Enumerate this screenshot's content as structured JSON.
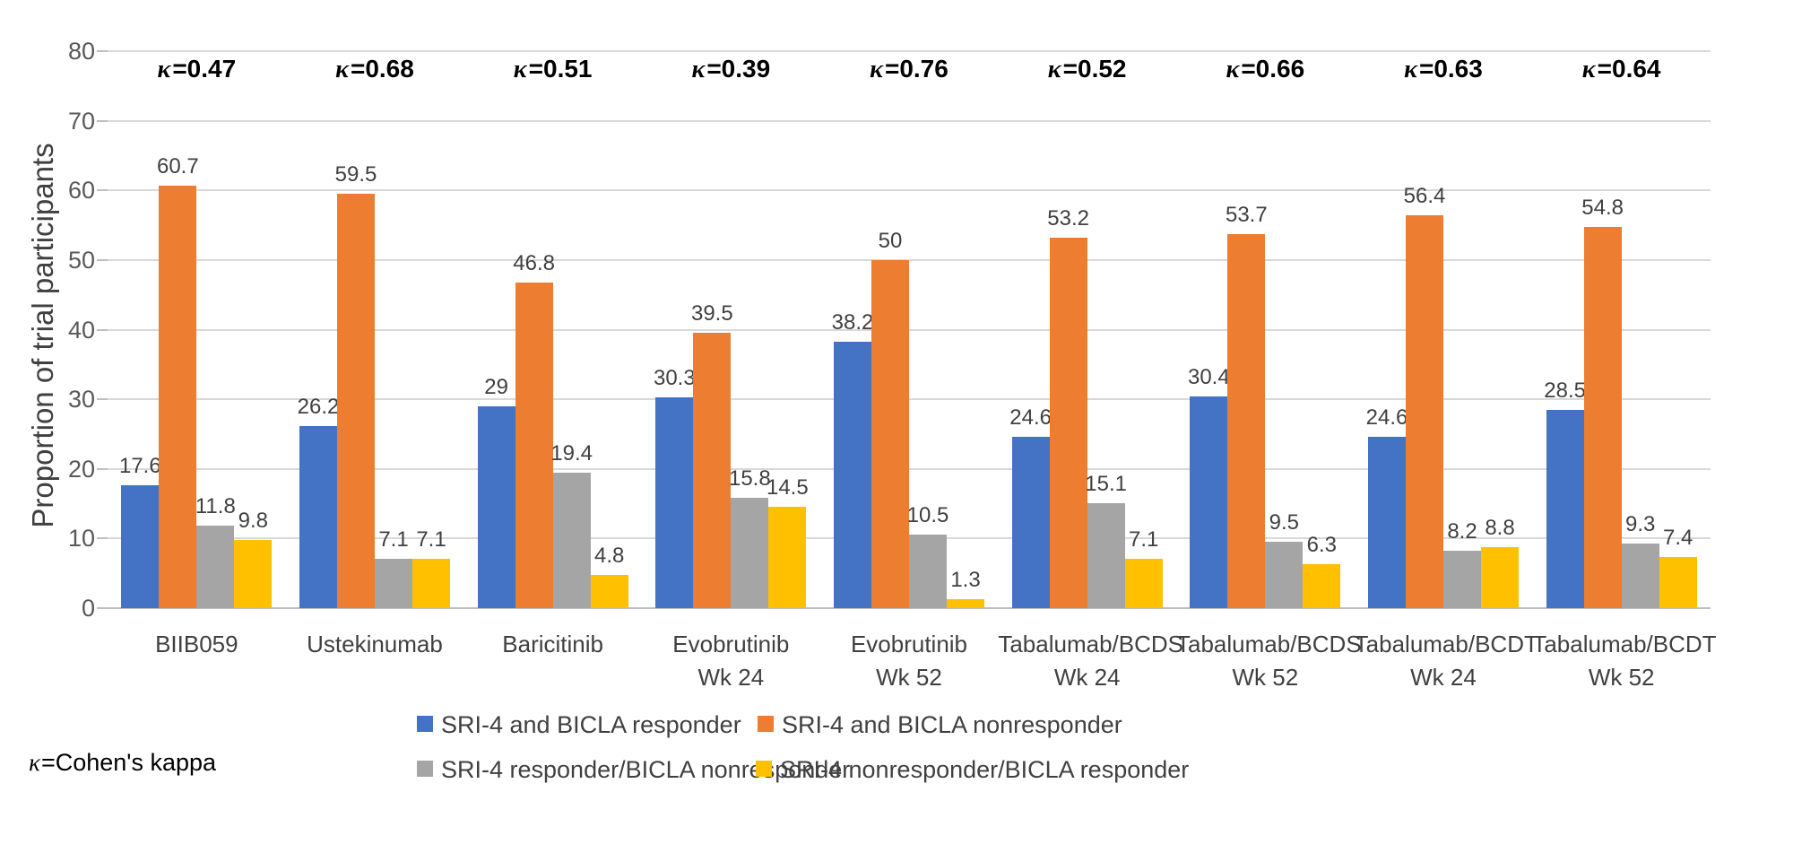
{
  "chart_data": {
    "type": "bar",
    "title": "",
    "xlabel": "",
    "ylabel": "Proportion of trial participants",
    "ylim": [
      0,
      80
    ],
    "y_ticks": [
      0,
      10,
      20,
      30,
      40,
      50,
      60,
      70,
      80
    ],
    "grid": true,
    "legend_position": "bottom",
    "categories": [
      {
        "lines": [
          "BIIB059"
        ]
      },
      {
        "lines": [
          "Ustekinumab"
        ]
      },
      {
        "lines": [
          "Baricitinib"
        ]
      },
      {
        "lines": [
          "Evobrutinib",
          "Wk 24"
        ]
      },
      {
        "lines": [
          "Evobrutinib",
          "Wk 52"
        ]
      },
      {
        "lines": [
          "Tabalumab/BCDS",
          "Wk 24"
        ]
      },
      {
        "lines": [
          "Tabalumab/BCDS",
          "Wk 52"
        ]
      },
      {
        "lines": [
          "Tabalumab/BCDT",
          "Wk 24"
        ]
      },
      {
        "lines": [
          "Tabalumab/BCDT",
          "Wk 52"
        ]
      }
    ],
    "series": [
      {
        "name": "SRI-4 and BICLA responder",
        "color": "#4472C4",
        "values": [
          "17.6",
          "26.2",
          "29",
          "30.3",
          "38.2",
          "24.6",
          "30.4",
          "24.6",
          "28.5"
        ]
      },
      {
        "name": "SRI-4 and BICLA nonresponder",
        "color": "#ED7D31",
        "values": [
          "60.7",
          "59.5",
          "46.8",
          "39.5",
          "50",
          "53.2",
          "53.7",
          "56.4",
          "54.8"
        ]
      },
      {
        "name": "SRI-4 responder/BICLA nonresponder",
        "color": "#A5A5A5",
        "values": [
          "11.8",
          "7.1",
          "19.4",
          "15.8",
          "10.5",
          "15.1",
          "9.5",
          "8.2",
          "9.3"
        ]
      },
      {
        "name": "SRI-4 nonresponder/BICLA responder",
        "color": "#FFC000",
        "values": [
          "9.8",
          "7.1",
          "4.8",
          "14.5",
          "1.3",
          "7.1",
          "6.3",
          "8.8",
          "7.4"
        ]
      }
    ],
    "kappa": {
      "symbol": "κ",
      "separator": "=",
      "values": [
        "0.47",
        "0.68",
        "0.51",
        "0.39",
        "0.76",
        "0.52",
        "0.66",
        "0.63",
        "0.64"
      ]
    }
  },
  "note": {
    "symbol": "κ",
    "text": "=Cohen's kappa"
  },
  "colors": {
    "gridline": "#D9D9D9",
    "axis_line": "#BFBFBF",
    "label_text": "#404040",
    "tick_text": "#595959",
    "kappa_text": "#000000"
  }
}
